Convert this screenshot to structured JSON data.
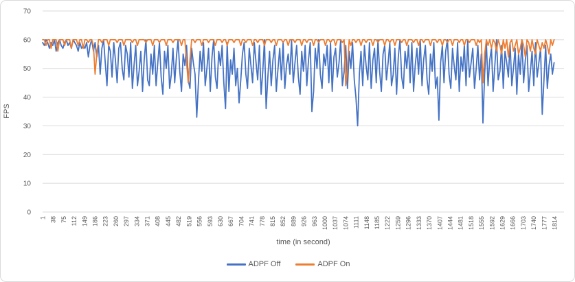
{
  "chart_data": {
    "type": "line",
    "title": "",
    "xlabel": "time (in second)",
    "ylabel": "FPS",
    "xlim": [
      1,
      1814
    ],
    "ylim": [
      0,
      70
    ],
    "grid": "horizontal",
    "legend_position": "bottom",
    "y_ticks": [
      0,
      10,
      20,
      30,
      40,
      50,
      60,
      70
    ],
    "x_tick_labels": [
      1,
      38,
      75,
      112,
      149,
      186,
      223,
      260,
      297,
      334,
      371,
      408,
      445,
      482,
      519,
      556,
      593,
      630,
      667,
      704,
      741,
      778,
      815,
      852,
      889,
      926,
      963,
      1000,
      1037,
      1074,
      1111,
      1148,
      1185,
      1222,
      1259,
      1296,
      1333,
      1370,
      1407,
      1444,
      1481,
      1518,
      1555,
      1592,
      1629,
      1666,
      1703,
      1740,
      1777,
      1814
    ],
    "x": {
      "start": 1,
      "step": 6
    },
    "series": [
      {
        "name": "ADPF Off",
        "color": "#4472C4",
        "values": [
          59,
          58,
          60,
          59,
          57,
          59,
          58,
          60,
          56,
          59,
          60,
          58,
          57,
          59,
          60,
          58,
          59,
          57,
          60,
          59,
          58,
          56,
          59,
          57,
          58,
          57,
          59,
          54,
          58,
          60,
          56,
          59,
          54,
          58,
          48,
          57,
          60,
          52,
          44,
          58,
          56,
          47,
          59,
          53,
          45,
          57,
          59,
          50,
          46,
          58,
          55,
          47,
          59,
          43,
          51,
          58,
          44,
          49,
          56,
          42,
          53,
          60,
          46,
          44,
          55,
          48,
          58,
          44,
          52,
          59,
          47,
          41,
          56,
          50,
          58,
          43,
          48,
          57,
          45,
          54,
          60,
          49,
          42,
          55,
          51,
          58,
          46,
          43,
          57,
          52,
          48,
          33,
          45,
          56,
          49,
          59,
          44,
          50,
          57,
          42,
          54,
          60,
          47,
          43,
          56,
          51,
          58,
          45,
          36,
          59,
          42,
          53,
          48,
          57,
          44,
          50,
          38,
          46,
          55,
          59,
          48,
          43,
          57,
          51,
          45,
          59,
          52,
          46,
          58,
          41,
          49,
          60,
          36,
          47,
          56,
          44,
          53,
          58,
          42,
          50,
          57,
          46,
          59,
          43,
          51,
          55,
          48,
          60,
          45,
          52,
          58,
          47,
          41,
          56,
          49,
          58,
          44,
          53,
          59,
          35,
          42,
          57,
          50,
          60,
          48,
          43,
          55,
          51,
          58,
          45,
          59,
          42,
          54,
          57,
          47,
          52,
          60,
          44,
          49,
          58,
          43,
          56,
          50,
          59,
          46,
          40,
          30,
          48,
          56,
          44,
          58,
          51,
          46,
          59,
          43,
          53,
          57,
          45,
          60,
          49,
          42,
          55,
          58,
          46,
          52,
          59,
          44,
          48,
          57,
          41,
          54,
          60,
          47,
          43,
          56,
          50,
          58,
          45,
          59,
          42,
          51,
          57,
          48,
          60,
          44,
          53,
          58,
          46,
          41,
          55,
          49,
          59,
          43,
          47,
          32,
          52,
          58,
          45,
          56,
          60,
          48,
          43,
          57,
          51,
          46,
          59,
          42,
          54,
          49,
          58,
          44,
          60,
          47,
          52,
          57,
          43,
          50,
          58,
          46,
          55,
          31,
          48,
          59,
          44,
          53,
          57,
          42,
          51,
          60,
          46,
          49,
          58,
          43,
          56,
          52,
          47,
          59,
          44,
          50,
          57,
          41,
          55,
          48,
          60,
          45,
          53,
          58,
          42,
          49,
          56,
          44,
          59,
          47,
          52,
          57,
          34,
          46,
          58,
          43,
          51,
          55,
          48,
          52
        ]
      },
      {
        "name": "ADPF On",
        "color": "#ED7D31",
        "values": [
          60,
          60,
          58,
          60,
          60,
          57,
          60,
          60,
          60,
          56,
          60,
          60,
          60,
          58,
          60,
          60,
          60,
          57,
          60,
          60,
          60,
          58,
          60,
          60,
          57,
          60,
          60,
          59,
          60,
          60,
          58,
          48,
          55,
          60,
          60,
          59,
          60,
          60,
          60,
          58,
          60,
          60,
          60,
          60,
          59,
          60,
          60,
          60,
          58,
          60,
          60,
          60,
          60,
          59,
          60,
          60,
          58,
          60,
          60,
          60,
          60,
          59,
          60,
          60,
          60,
          58,
          60,
          60,
          60,
          59,
          60,
          60,
          60,
          58,
          60,
          60,
          60,
          59,
          60,
          60,
          60,
          60,
          58,
          60,
          60,
          52,
          45,
          53,
          60,
          60,
          59,
          60,
          60,
          60,
          58,
          60,
          60,
          60,
          59,
          60,
          60,
          60,
          58,
          60,
          60,
          60,
          59,
          60,
          60,
          58,
          60,
          60,
          60,
          59,
          60,
          60,
          60,
          58,
          60,
          60,
          59,
          60,
          60,
          60,
          58,
          60,
          60,
          59,
          60,
          60,
          60,
          58,
          60,
          60,
          60,
          59,
          60,
          60,
          58,
          60,
          60,
          60,
          59,
          60,
          60,
          58,
          60,
          60,
          60,
          59,
          60,
          60,
          60,
          58,
          60,
          60,
          59,
          60,
          60,
          60,
          58,
          60,
          60,
          59,
          60,
          60,
          60,
          58,
          60,
          60,
          59,
          60,
          60,
          58,
          60,
          60,
          60,
          59,
          60,
          44,
          50,
          60,
          58,
          60,
          60,
          59,
          60,
          60,
          58,
          60,
          60,
          59,
          60,
          60,
          60,
          58,
          60,
          60,
          59,
          60,
          60,
          60,
          58,
          60,
          60,
          59,
          60,
          60,
          58,
          60,
          60,
          60,
          59,
          60,
          60,
          58,
          60,
          60,
          60,
          59,
          60,
          60,
          58,
          60,
          60,
          59,
          60,
          60,
          60,
          58,
          60,
          60,
          60,
          59,
          60,
          60,
          58,
          60,
          60,
          59,
          60,
          60,
          58,
          60,
          60,
          60,
          59,
          60,
          60,
          58,
          60,
          60,
          59,
          60,
          60,
          60,
          58,
          60,
          59,
          60,
          45,
          55,
          60,
          58,
          60,
          57,
          60,
          59,
          56,
          60,
          58,
          55,
          60,
          57,
          60,
          54,
          59,
          60,
          56,
          58,
          60,
          55,
          57,
          60,
          58,
          54,
          60,
          59,
          56,
          60,
          57,
          55,
          60,
          58,
          56,
          59,
          57,
          60,
          58,
          55,
          60,
          58,
          60
        ]
      }
    ]
  },
  "styles": {
    "grid_color": "#D9D9D9",
    "axis_color": "#D9D9D9",
    "text_color": "#595959",
    "border_color": "#D9D9D9",
    "background": "#FFFFFF"
  }
}
